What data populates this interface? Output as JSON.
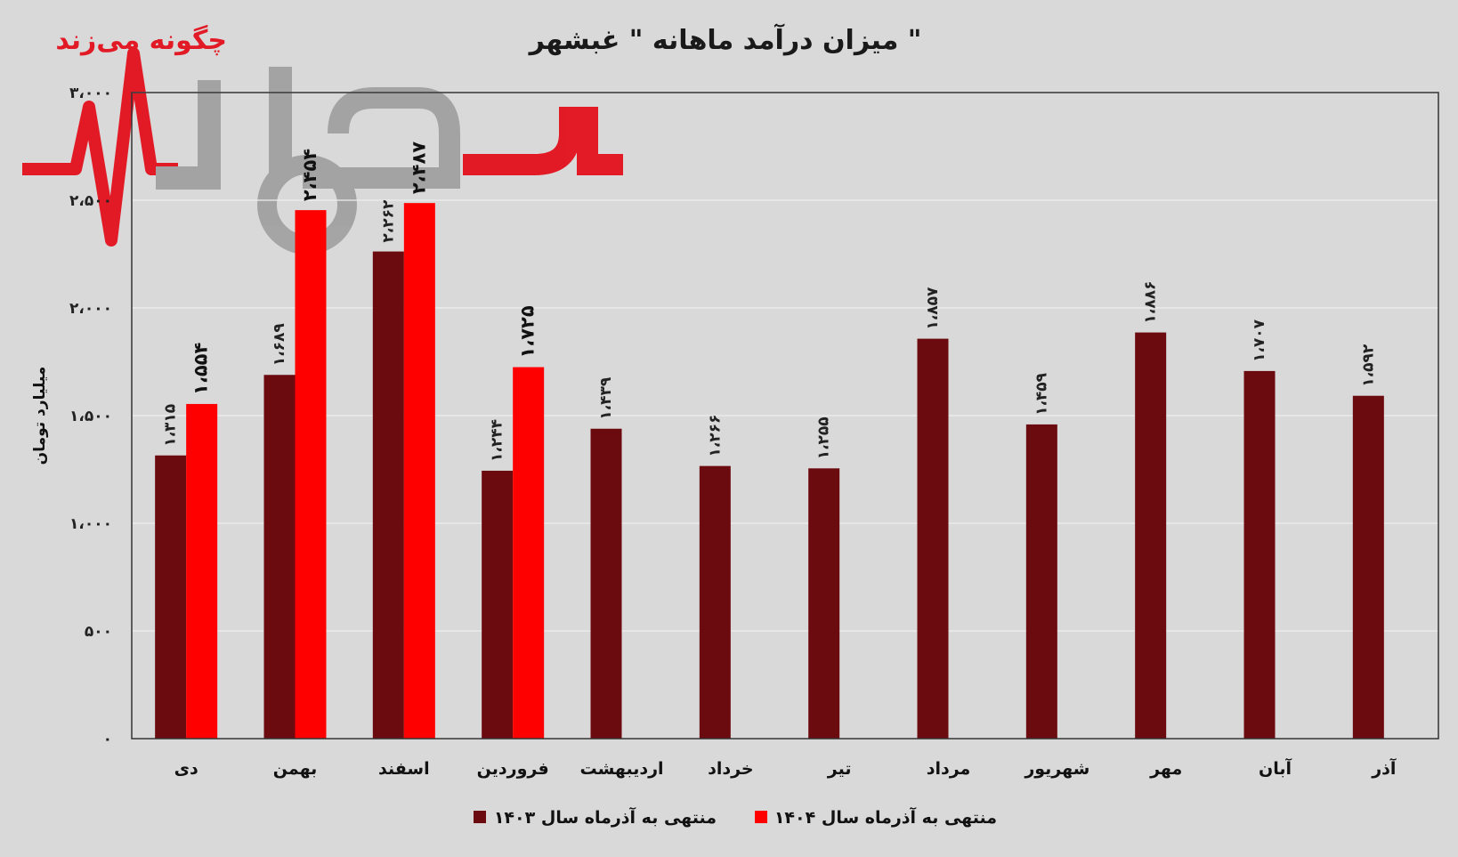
{
  "colors": {
    "series_1403": "#6b0a0f",
    "series_1404": "#ff0000",
    "background": "#d9d9d9",
    "grid": "#eeeeee",
    "axis": "#333333"
  },
  "watermark": {
    "tagline": "چگونه می‌زند"
  },
  "chart_data": {
    "type": "bar",
    "title": "میزان درآمد ماهانه \" غبشهر \"",
    "ylabel": "میلیارد تومان",
    "xlabel": "",
    "ylim": [
      0,
      3000
    ],
    "yticks": [
      0,
      500,
      1000,
      1500,
      2000,
      2500,
      3000
    ],
    "ytick_labels": [
      "۰",
      "۵۰۰",
      "۱،۰۰۰",
      "۱،۵۰۰",
      "۲،۰۰۰",
      "۲،۵۰۰",
      "۳،۰۰۰"
    ],
    "grid": true,
    "legend_position": "bottom",
    "categories": [
      "دی",
      "بهمن",
      "اسفند",
      "فروردین",
      "اردیبهشت",
      "خرداد",
      "تیر",
      "مرداد",
      "شهریور",
      "مهر",
      "آبان",
      "آذر"
    ],
    "series": [
      {
        "name": "منتهی به آذرماه سال ۱۴۰۳",
        "color": "#6b0a0f",
        "values": [
          1315,
          1689,
          2262,
          1244,
          1439,
          1266,
          1255,
          1857,
          1459,
          1886,
          1707,
          1592
        ],
        "labels": [
          "۱،۳۱۵",
          "۱،۶۸۹",
          "۲،۲۶۲",
          "۱،۲۴۴",
          "۱،۴۳۹",
          "۱،۲۶۶",
          "۱،۲۵۵",
          "۱،۸۵۷",
          "۱،۴۵۹",
          "۱،۸۸۶",
          "۱،۷۰۷",
          "۱،۵۹۲"
        ]
      },
      {
        "name": "منتهی به آذرماه سال ۱۴۰۴",
        "color": "#ff0000",
        "values": [
          1554,
          2454,
          2487,
          1725,
          null,
          null,
          null,
          null,
          null,
          null,
          null,
          null
        ],
        "labels": [
          "۱،۵۵۴",
          "۲،۴۵۴",
          "۲،۴۸۷",
          "۱،۷۲۵",
          "",
          "",
          "",
          "",
          "",
          "",
          "",
          ""
        ]
      }
    ]
  }
}
